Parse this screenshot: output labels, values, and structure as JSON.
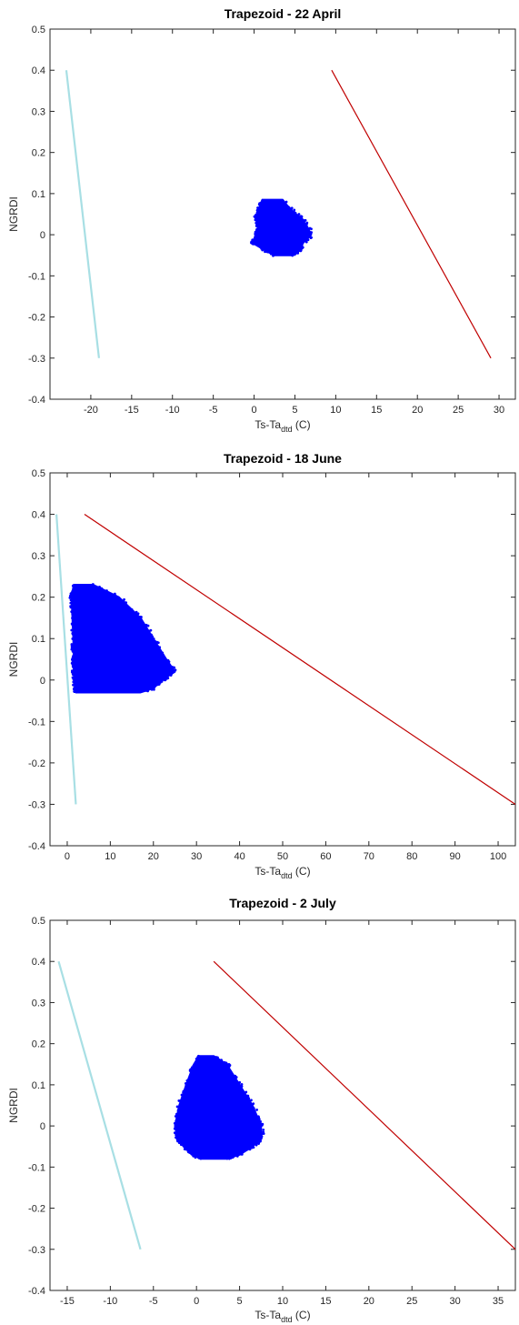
{
  "chart_data": [
    {
      "type": "scatter",
      "title": "Trapezoid - 22 April",
      "xlabel_main": "Ts-Ta",
      "xlabel_sub": "dtd",
      "xlabel_unit": " (C)",
      "ylabel": "NGRDI",
      "xlim": [
        -25,
        32
      ],
      "ylim": [
        -0.4,
        0.5
      ],
      "x_ticks": [
        -20,
        -15,
        -10,
        -5,
        0,
        5,
        10,
        15,
        20,
        25,
        30
      ],
      "y_ticks": [
        -0.4,
        -0.3,
        -0.2,
        -0.1,
        0,
        0.1,
        0.2,
        0.3,
        0.4,
        0.5
      ],
      "wet_edge": {
        "x": [
          -23,
          -19
        ],
        "y": [
          0.4,
          -0.3
        ],
        "color": "#a8dfe4"
      },
      "dry_edge": {
        "x": [
          9.5,
          29
        ],
        "y": [
          0.4,
          -0.3
        ],
        "color": "#c00000"
      },
      "cloud": {
        "color": "#0000ff",
        "center": [
          3.3,
          0.01
        ],
        "profile": [
          [
            0.085,
            1.0,
            3.5
          ],
          [
            0.06,
            0.5,
            4.5
          ],
          [
            0.04,
            0.2,
            5.8
          ],
          [
            0.02,
            0.5,
            6.5
          ],
          [
            0.0,
            0.2,
            7.0
          ],
          [
            -0.02,
            -0.2,
            6.0
          ],
          [
            -0.04,
            1.5,
            5.5
          ],
          [
            -0.05,
            2.5,
            4.5
          ]
        ]
      }
    },
    {
      "type": "scatter",
      "title": "Trapezoid -  18 June",
      "xlabel_main": "Ts-Ta",
      "xlabel_sub": "dtd",
      "xlabel_unit": " (C)",
      "ylabel": "NGRDI",
      "xlim": [
        -4,
        104
      ],
      "ylim": [
        -0.4,
        0.5
      ],
      "x_ticks": [
        0,
        10,
        20,
        30,
        40,
        50,
        60,
        70,
        80,
        90,
        100
      ],
      "y_ticks": [
        -0.4,
        -0.3,
        -0.2,
        -0.1,
        0,
        0.1,
        0.2,
        0.3,
        0.4,
        0.5
      ],
      "wet_edge": {
        "x": [
          -2.5,
          2
        ],
        "y": [
          0.4,
          -0.3
        ],
        "color": "#a8dfe4"
      },
      "dry_edge": {
        "x": [
          4,
          104
        ],
        "y": [
          0.4,
          -0.3
        ],
        "color": "#c00000"
      },
      "cloud": {
        "color": "#0000ff",
        "center": [
          10.0,
          0.08
        ],
        "profile": [
          [
            0.23,
            1.5,
            6.0
          ],
          [
            0.2,
            1.0,
            12.0
          ],
          [
            0.15,
            1.2,
            17.0
          ],
          [
            0.1,
            1.4,
            20.0
          ],
          [
            0.05,
            1.5,
            23.0
          ],
          [
            0.02,
            1.5,
            25.0
          ],
          [
            0.0,
            1.6,
            22.0
          ],
          [
            -0.02,
            1.8,
            20.0
          ],
          [
            -0.03,
            2.0,
            17.0
          ]
        ]
      }
    },
    {
      "type": "scatter",
      "title": "Trapezoid -  2 July",
      "xlabel_main": "Ts-Ta",
      "xlabel_sub": "dtd",
      "xlabel_unit": " (C)",
      "ylabel": "NGRDI",
      "xlim": [
        -17,
        37
      ],
      "ylim": [
        -0.4,
        0.5
      ],
      "x_ticks": [
        -15,
        -10,
        -5,
        0,
        5,
        10,
        15,
        20,
        25,
        30,
        35
      ],
      "y_ticks": [
        -0.4,
        -0.3,
        -0.2,
        -0.1,
        0,
        0.1,
        0.2,
        0.3,
        0.4,
        0.5
      ],
      "wet_edge": {
        "x": [
          -16,
          -6.5
        ],
        "y": [
          0.4,
          -0.3
        ],
        "color": "#a8dfe4"
      },
      "dry_edge": {
        "x": [
          2,
          37
        ],
        "y": [
          0.4,
          -0.3
        ],
        "color": "#c00000"
      },
      "cloud": {
        "color": "#0000ff",
        "center": [
          2.5,
          0.04
        ],
        "profile": [
          [
            0.17,
            0.3,
            2.0
          ],
          [
            0.15,
            -0.3,
            3.5
          ],
          [
            0.1,
            -1.2,
            5.0
          ],
          [
            0.05,
            -2.0,
            6.5
          ],
          [
            0.0,
            -2.5,
            7.5
          ],
          [
            -0.03,
            -2.2,
            7.5
          ],
          [
            -0.05,
            -1.5,
            6.5
          ],
          [
            -0.07,
            -0.5,
            5.0
          ],
          [
            -0.08,
            0.5,
            3.5
          ]
        ]
      }
    }
  ]
}
